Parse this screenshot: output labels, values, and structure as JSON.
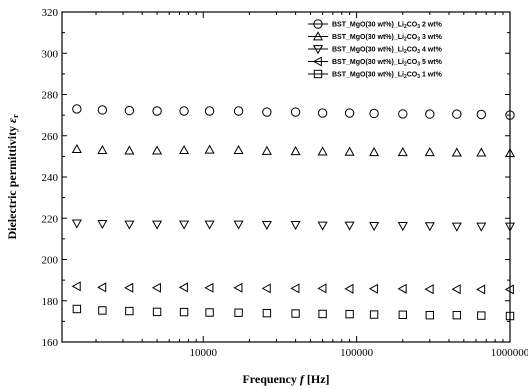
{
  "chart_data": {
    "type": "scatter",
    "xlabel": "Frequency f [Hz]",
    "ylabel": "Dielectric permittivity εr",
    "xscale": "log",
    "xlim": [
      1200,
      1000000
    ],
    "ylim": [
      160,
      320
    ],
    "x_ticks": [
      "10000",
      "100000",
      "1000000"
    ],
    "y_ticks": [
      "160",
      "180",
      "200",
      "220",
      "240",
      "260",
      "280",
      "300",
      "320"
    ],
    "grid": false,
    "legend_position": "top-right",
    "x": [
      1500,
      2200,
      3300,
      5000,
      7500,
      11000,
      17000,
      26000,
      40000,
      60000,
      90000,
      130000,
      200000,
      300000,
      450000,
      650000,
      1000000
    ],
    "series": [
      {
        "name": "BST_MgO(30 wt%)_Li2CO3 2 wt%",
        "marker": "circle",
        "values": [
          273,
          272.5,
          272.2,
          272,
          272,
          272,
          272,
          271.5,
          271.5,
          271,
          271,
          270.8,
          270.6,
          270.5,
          270.5,
          270.3,
          270
        ]
      },
      {
        "name": "BST_MgO(30 wt%)_Li2CO3 3 wt%",
        "marker": "triangle-up",
        "values": [
          253.5,
          253,
          252.8,
          252.8,
          253,
          253.2,
          253,
          252.6,
          252.5,
          252.3,
          252.2,
          252,
          252,
          252,
          251.8,
          251.8,
          251.5
        ]
      },
      {
        "name": "BST_MgO(30 wt%)_Li2CO3 4 wt%",
        "marker": "triangle-down",
        "values": [
          217.5,
          217.3,
          217,
          217,
          217,
          217,
          217,
          216.8,
          216.8,
          216.5,
          216.5,
          216.3,
          216.3,
          216.2,
          216,
          216,
          216
        ]
      },
      {
        "name": "BST_MgO(30 wt%)_Li2CO3 5 wt%",
        "marker": "triangle-left",
        "values": [
          187,
          186.5,
          186.3,
          186.3,
          186.5,
          186.3,
          186.3,
          186,
          186,
          186,
          185.8,
          185.8,
          185.8,
          185.6,
          185.6,
          185.5,
          185.5
        ]
      },
      {
        "name": "BST_MgO(30 wt%)_Li2CO3 1 wt%",
        "marker": "square",
        "values": [
          176,
          175.3,
          175,
          174.6,
          174.5,
          174.3,
          174.2,
          174,
          173.8,
          173.6,
          173.5,
          173.3,
          173.2,
          173,
          173,
          172.8,
          172.6
        ]
      }
    ],
    "legend": [
      {
        "prefix": "BST_MgO(30 wt%)_Li",
        "sub1": "2",
        "mid": "CO",
        "sub2": "3",
        "suffix": " 2 wt%"
      },
      {
        "prefix": "BST_MgO(30 wt%)_Li",
        "sub1": "2",
        "mid": "CO",
        "sub2": "3",
        "suffix": " 3 wt%"
      },
      {
        "prefix": "BST_MgO(30 wt%)_Li",
        "sub1": "2",
        "mid": "CO",
        "sub2": "3",
        "suffix": " 4 wt%"
      },
      {
        "prefix": "BST_MgO(30 wt%)_Li",
        "sub1": "2",
        "mid": "CO",
        "sub2": "3",
        "suffix": " 5 wt%"
      },
      {
        "prefix": "BST_MgO(30 wt%)_Li",
        "sub1": "2",
        "mid": "CO",
        "sub2": "3",
        "suffix": " 1 wt%"
      }
    ]
  }
}
